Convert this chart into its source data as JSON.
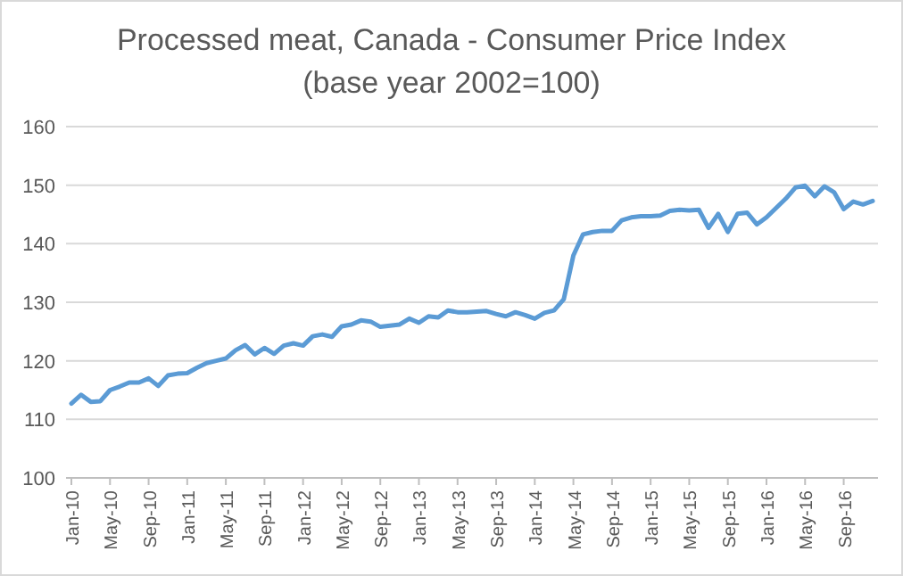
{
  "chart_data": {
    "type": "line",
    "title": "Processed meat, Canada - Consumer Price Index",
    "subtitle": "(base year 2002=100)",
    "categories": [
      "Jan-10",
      null,
      null,
      null,
      "May-10",
      null,
      null,
      null,
      "Sep-10",
      null,
      null,
      null,
      "Jan-11",
      null,
      null,
      null,
      "May-11",
      null,
      null,
      null,
      "Sep-11",
      null,
      null,
      null,
      "Jan-12",
      null,
      null,
      null,
      "May-12",
      null,
      null,
      null,
      "Sep-12",
      null,
      null,
      null,
      "Jan-13",
      null,
      null,
      null,
      "May-13",
      null,
      null,
      null,
      "Sep-13",
      null,
      null,
      null,
      "Jan-14",
      null,
      null,
      null,
      "May-14",
      null,
      null,
      null,
      "Sep-14",
      null,
      null,
      null,
      "Jan-15",
      null,
      null,
      null,
      "May-15",
      null,
      null,
      null,
      "Sep-15",
      null,
      null,
      null,
      "Jan-16",
      null,
      null,
      null,
      "May-16",
      null,
      null,
      null,
      "Sep-16",
      null,
      null,
      null
    ],
    "series": [
      {
        "color": "#5b9bd5",
        "values": [
          112.7,
          114.2,
          113,
          113.1,
          115,
          115.6,
          116.3,
          116.3,
          117,
          115.7,
          117.5,
          117.8,
          117.9,
          118.8,
          119.6,
          120,
          120.4,
          121.8,
          122.7,
          121.1,
          122.2,
          121.2,
          122.6,
          123,
          122.6,
          124.2,
          124.5,
          124.1,
          125.9,
          126.2,
          126.9,
          126.7,
          125.8,
          126,
          126.2,
          127.2,
          126.5,
          127.6,
          127.4,
          128.6,
          128.3,
          128.3,
          128.4,
          128.5,
          128,
          127.6,
          128.3,
          127.8,
          127.2,
          128.2,
          128.6,
          130.5,
          138,
          141.6,
          142,
          142.2,
          142.2,
          144,
          144.5,
          144.7,
          144.7,
          144.8,
          145.6,
          145.8,
          145.7,
          145.8,
          142.7,
          145.1,
          142,
          145.1,
          145.3,
          143.3,
          144.5,
          146.1,
          147.7,
          149.6,
          149.9,
          148.1,
          149.8,
          148.8,
          145.9,
          147.2,
          146.7,
          147.3
        ]
      }
    ],
    "ylim": [
      100,
      160
    ],
    "yticks": [
      100,
      110,
      120,
      130,
      140,
      150,
      160
    ],
    "grid": "y",
    "marker": "none",
    "line_style": "solid"
  }
}
